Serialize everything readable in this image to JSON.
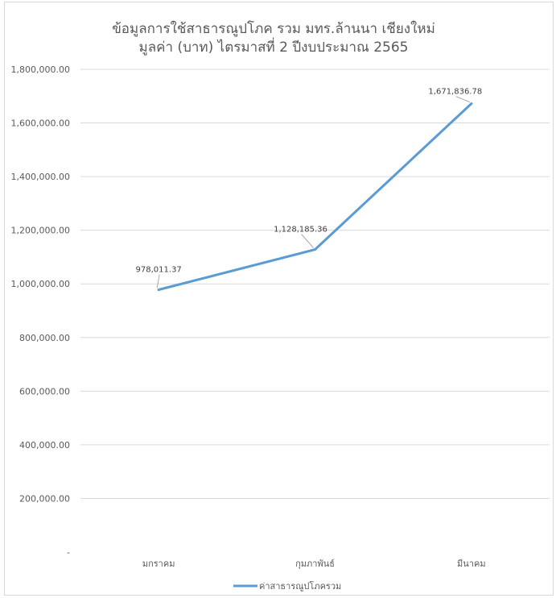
{
  "chart_data": {
    "type": "line",
    "title_line1": "ข้อมูลการใช้สาธารณูปโภค รวม มทร.ล้านนา เชียงใหม่",
    "title_line2": "มูลค่า (บาท) ไตรมาสที่ 2 ปีงบประมาณ 2565",
    "categories": [
      "มกราคม",
      "กุมภาพันธ์",
      "มีนาคม"
    ],
    "series": [
      {
        "name": "ค่าสาธารณูปโภครวม",
        "values": [
          978011.37,
          1128185.36,
          1671836.78
        ],
        "labels": [
          "978,011.37",
          "1,128,185.36",
          "1,671,836.78"
        ],
        "color": "#5b9bd5"
      }
    ],
    "y_ticks": [
      {
        "value": 0,
        "label": "-"
      },
      {
        "value": 200000,
        "label": "200,000.00"
      },
      {
        "value": 400000,
        "label": "400,000.00"
      },
      {
        "value": 600000,
        "label": "600,000.00"
      },
      {
        "value": 800000,
        "label": "800,000.00"
      },
      {
        "value": 1000000,
        "label": "1,000,000.00"
      },
      {
        "value": 1200000,
        "label": "1,200,000.00"
      },
      {
        "value": 1400000,
        "label": "1,400,000.00"
      },
      {
        "value": 1600000,
        "label": "1,600,000.00"
      },
      {
        "value": 1800000,
        "label": "1,800,000.00"
      }
    ],
    "ylim": [
      0,
      1800000
    ],
    "grid": true,
    "legend_position": "bottom",
    "gridline_color": "#d9d9d9",
    "text_color": "#595959"
  }
}
